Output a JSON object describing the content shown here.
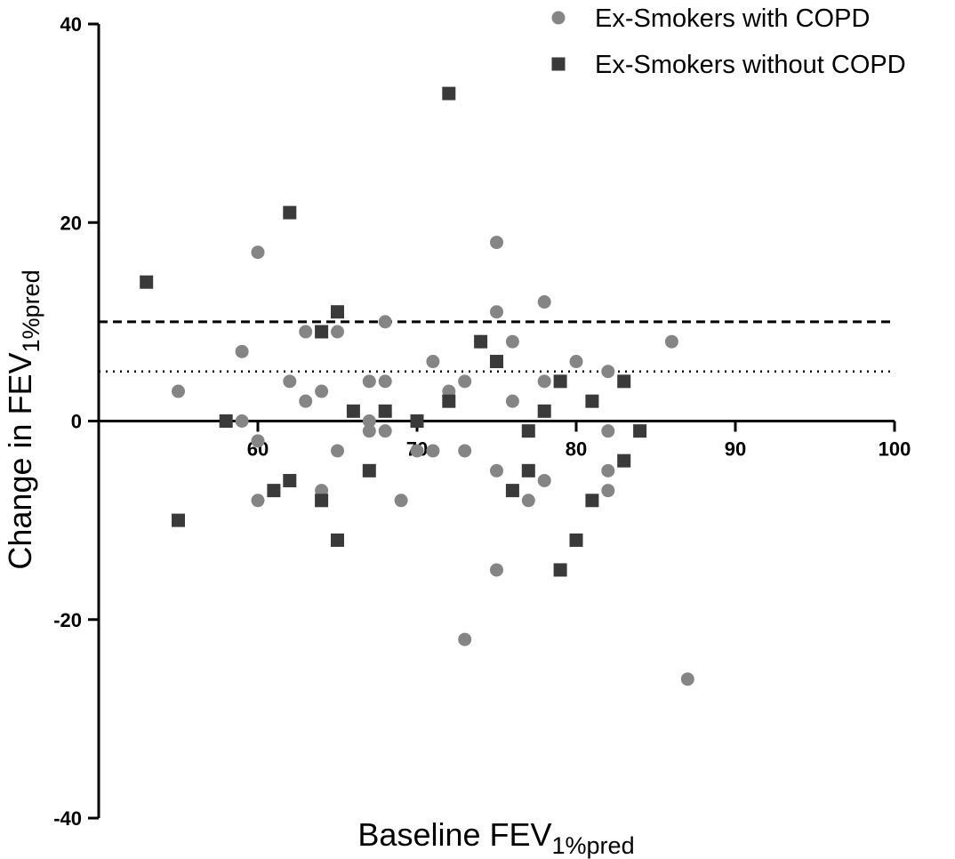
{
  "chart_data": {
    "type": "scatter",
    "title": "",
    "xlabel": "Baseline FEV",
    "xlabel_sub": "1%pred",
    "ylabel": "Change in FEV",
    "ylabel_sub": "1%pred",
    "xlim": [
      50,
      100
    ],
    "ylim": [
      -40,
      40
    ],
    "x_ticks": [
      60,
      70,
      80,
      90,
      100
    ],
    "y_ticks": [
      -40,
      -20,
      0,
      20,
      40
    ],
    "grid": false,
    "legend_position": "top-right",
    "reference_lines": [
      {
        "y": 10,
        "style": "dashed"
      },
      {
        "y": 5,
        "style": "dotted"
      }
    ],
    "series": [
      {
        "name": "Ex-Smokers with COPD",
        "marker": "circle",
        "color": "#858585",
        "points": [
          [
            55,
            3
          ],
          [
            59,
            7
          ],
          [
            59,
            0
          ],
          [
            60,
            17
          ],
          [
            60,
            -2
          ],
          [
            60,
            -8
          ],
          [
            62,
            4
          ],
          [
            63,
            9
          ],
          [
            63,
            2
          ],
          [
            64,
            3
          ],
          [
            64,
            -7
          ],
          [
            65,
            9
          ],
          [
            65,
            -3
          ],
          [
            67,
            4
          ],
          [
            67,
            0
          ],
          [
            67,
            -1
          ],
          [
            68,
            10
          ],
          [
            68,
            4
          ],
          [
            68,
            -1
          ],
          [
            69,
            -8
          ],
          [
            70,
            -3
          ],
          [
            71,
            6
          ],
          [
            71,
            -3
          ],
          [
            72,
            3
          ],
          [
            73,
            4
          ],
          [
            73,
            -3
          ],
          [
            73,
            -22
          ],
          [
            74,
            8
          ],
          [
            75,
            18
          ],
          [
            75,
            11
          ],
          [
            75,
            -5
          ],
          [
            75,
            -15
          ],
          [
            76,
            8
          ],
          [
            76,
            2
          ],
          [
            77,
            -8
          ],
          [
            78,
            12
          ],
          [
            78,
            4
          ],
          [
            78,
            -6
          ],
          [
            80,
            6
          ],
          [
            82,
            5
          ],
          [
            82,
            -1
          ],
          [
            82,
            -5
          ],
          [
            82,
            -7
          ],
          [
            86,
            8
          ],
          [
            87,
            -26
          ]
        ]
      },
      {
        "name": "Ex-Smokers without COPD",
        "marker": "square",
        "color": "#3a3a3a",
        "points": [
          [
            53,
            14
          ],
          [
            55,
            -10
          ],
          [
            58,
            0
          ],
          [
            61,
            -7
          ],
          [
            62,
            21
          ],
          [
            62,
            -6
          ],
          [
            64,
            9
          ],
          [
            64,
            -8
          ],
          [
            65,
            11
          ],
          [
            65,
            -12
          ],
          [
            66,
            1
          ],
          [
            67,
            -5
          ],
          [
            68,
            1
          ],
          [
            70,
            0
          ],
          [
            72,
            33
          ],
          [
            72,
            2
          ],
          [
            74,
            8
          ],
          [
            75,
            6
          ],
          [
            76,
            -7
          ],
          [
            77,
            -1
          ],
          [
            77,
            -5
          ],
          [
            78,
            1
          ],
          [
            79,
            4
          ],
          [
            79,
            -15
          ],
          [
            80,
            -12
          ],
          [
            81,
            2
          ],
          [
            81,
            -8
          ],
          [
            83,
            4
          ],
          [
            83,
            -4
          ],
          [
            84,
            -1
          ]
        ]
      }
    ]
  }
}
